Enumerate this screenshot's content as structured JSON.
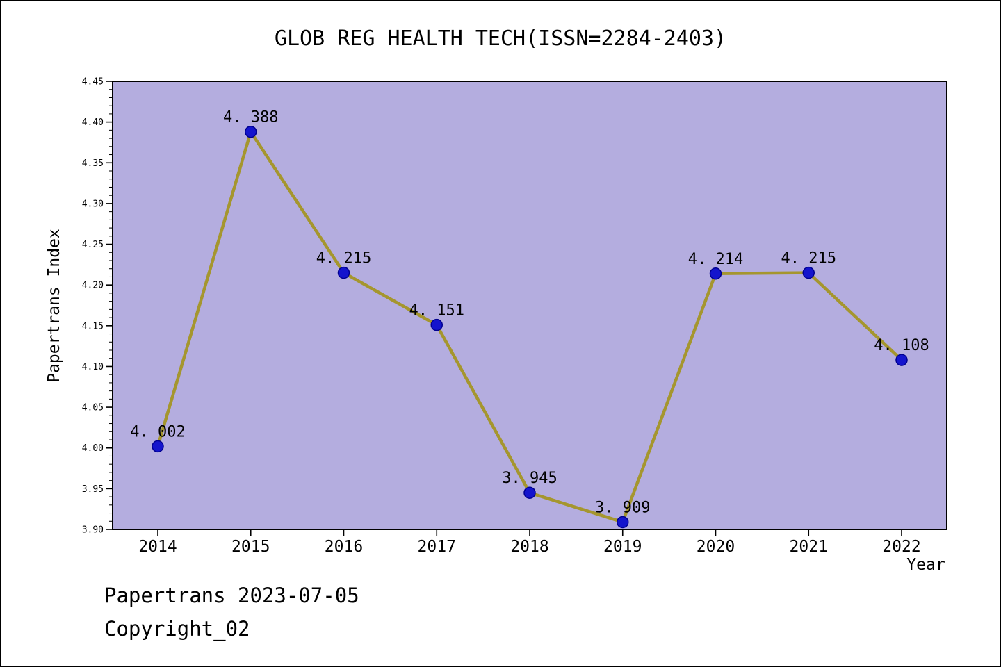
{
  "title": "GLOB REG HEALTH TECH(ISSN=2284-2403)",
  "axes": {
    "ylabel": "Papertrans Index",
    "xlabel": "Year"
  },
  "footer": {
    "line1": "Papertrans 2023-07-05",
    "line2": "Copyright_02"
  },
  "colors": {
    "plot_bg": "#b4addf",
    "line": "#a5962e",
    "marker": "#1414cd",
    "marker_edge": "#000090",
    "axis": "#000000",
    "text": "#000000"
  },
  "chart_data": {
    "type": "line",
    "title": "GLOB REG HEALTH TECH(ISSN=2284-2403)",
    "xlabel": "Year",
    "ylabel": "Papertrans Index",
    "x": [
      "2014",
      "2015",
      "2016",
      "2017",
      "2018",
      "2019",
      "2020",
      "2021",
      "2022"
    ],
    "series": [
      {
        "name": "Papertrans Index",
        "values": [
          4.002,
          4.388,
          4.215,
          4.151,
          3.945,
          3.909,
          4.214,
          4.215,
          4.108
        ]
      }
    ],
    "point_labels": [
      "4. 002",
      "4. 388",
      "4. 215",
      "4. 151",
      "3. 945",
      "3. 909",
      "4. 214",
      "4. 215",
      "4. 108"
    ],
    "ylim": [
      3.9,
      4.45
    ],
    "yticks": [
      "3.90",
      "3.95",
      "4.00",
      "4.05",
      "4.10",
      "4.15",
      "4.20",
      "4.25",
      "4.30",
      "4.35",
      "4.40",
      "4.45"
    ],
    "y_minor_step": 0.01,
    "grid": false,
    "legend": "none"
  }
}
